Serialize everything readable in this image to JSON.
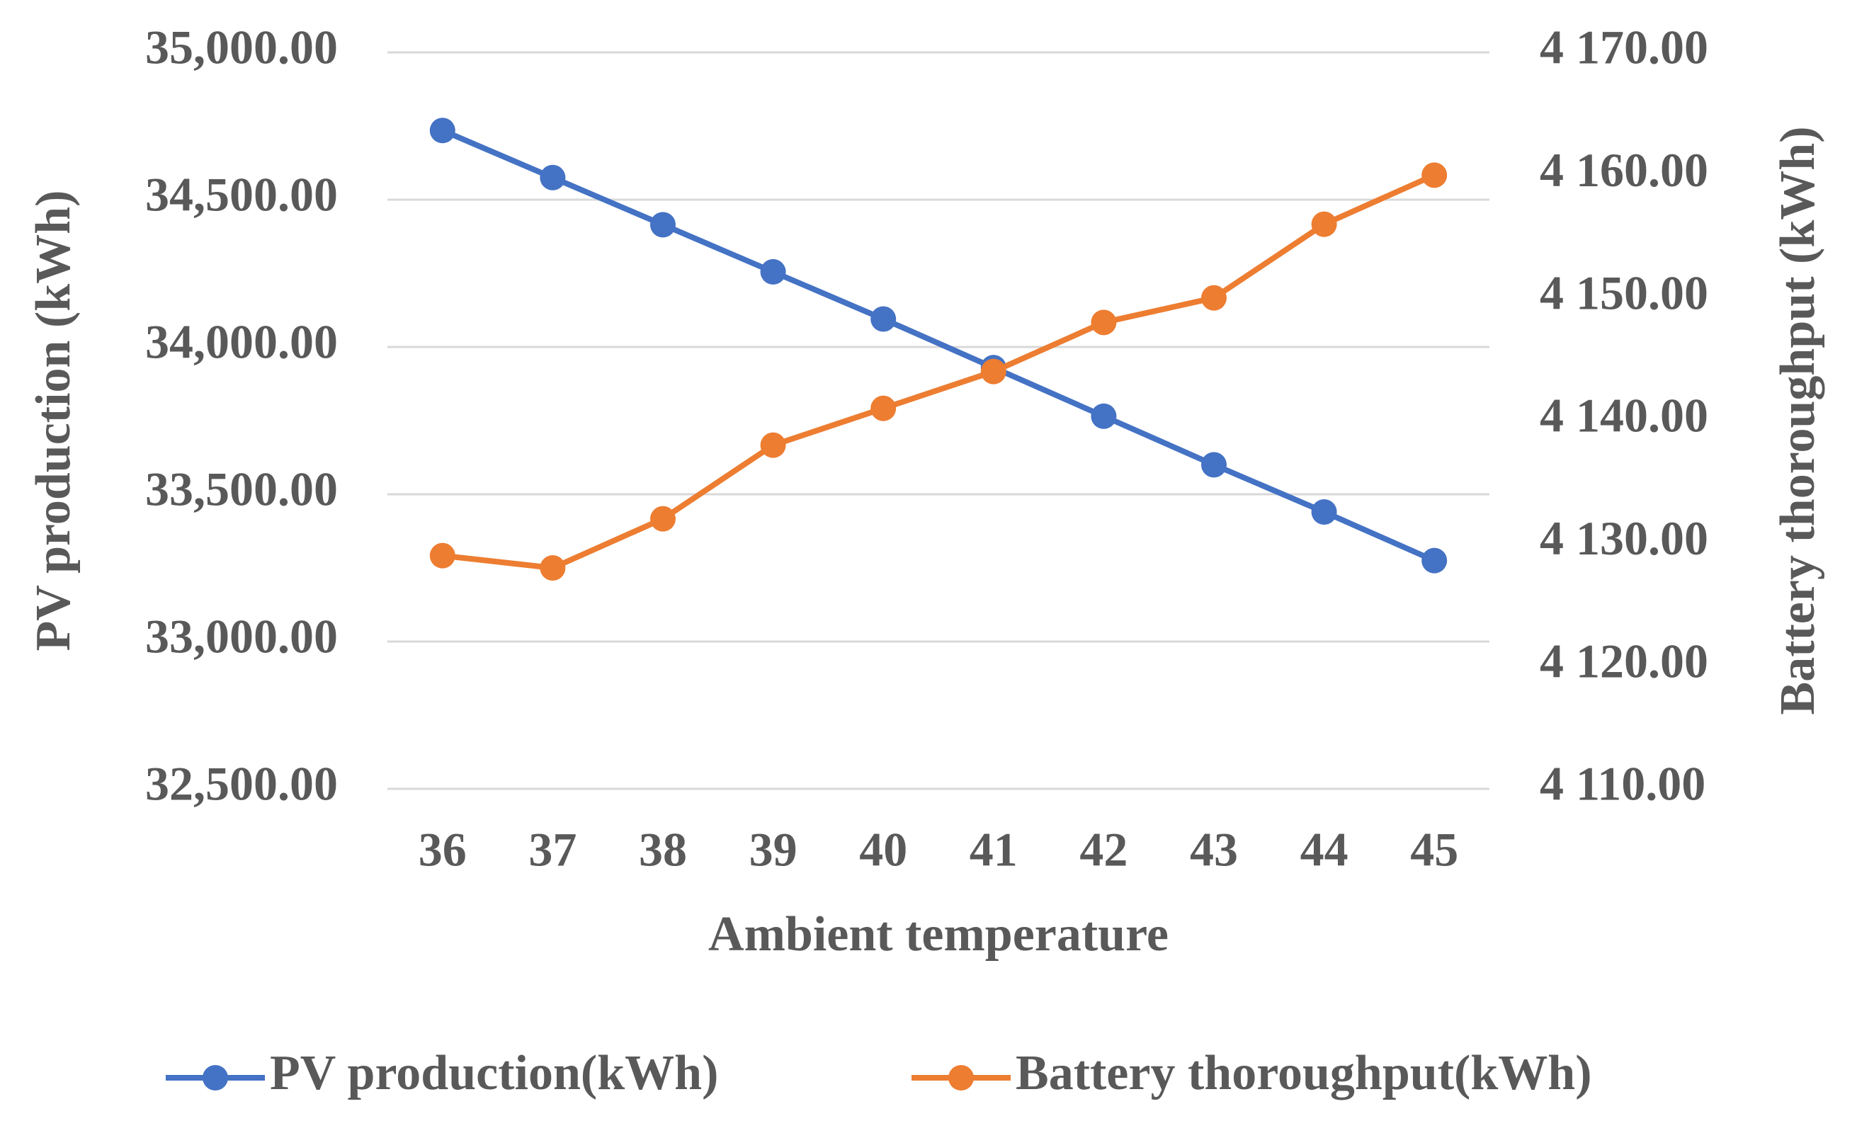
{
  "chart_data": {
    "type": "line",
    "x_label": "Ambient temperature",
    "y_label": "PV production (kWh)",
    "y2_label": "Battery thoroughput (kWh)",
    "categories": [
      "36",
      "37",
      "38",
      "39",
      "40",
      "41",
      "42",
      "43",
      "44",
      "45"
    ],
    "series": [
      {
        "name": "PV production(kWh)",
        "color": "#4472c4",
        "values": [
          34735,
          34575,
          34415,
          34255,
          34095,
          33930,
          33765,
          33600,
          33440,
          33275
        ]
      },
      {
        "name": "Battery thoroughput(kWh)",
        "color": "#ed7d31",
        "axis": "y2",
        "values": [
          4129,
          4128,
          4132,
          4138,
          4141,
          4144,
          4148,
          4150,
          4156,
          4160
        ]
      }
    ],
    "ylim": [
      32500,
      35000
    ],
    "yticks": [
      {
        "value": 32500,
        "label": "32,500.00"
      },
      {
        "value": 33000,
        "label": "33,000.00"
      },
      {
        "value": 33500,
        "label": "33,500.00"
      },
      {
        "value": 34000,
        "label": "34,000.00"
      },
      {
        "value": 34500,
        "label": "34,500.00"
      },
      {
        "value": 35000,
        "label": "35,000.00"
      }
    ],
    "y2lim": [
      4110,
      4170
    ],
    "y2ticks": [
      {
        "value": 4110,
        "label": "4 110.00"
      },
      {
        "value": 4120,
        "label": "4 120.00"
      },
      {
        "value": 4130,
        "label": "4 130.00"
      },
      {
        "value": 4140,
        "label": "4 140.00"
      },
      {
        "value": 4150,
        "label": "4 150.00"
      },
      {
        "value": 4160,
        "label": "4 160.00"
      },
      {
        "value": 4170,
        "label": "4 170.00"
      }
    ],
    "grid": true,
    "legend": "bottom"
  }
}
